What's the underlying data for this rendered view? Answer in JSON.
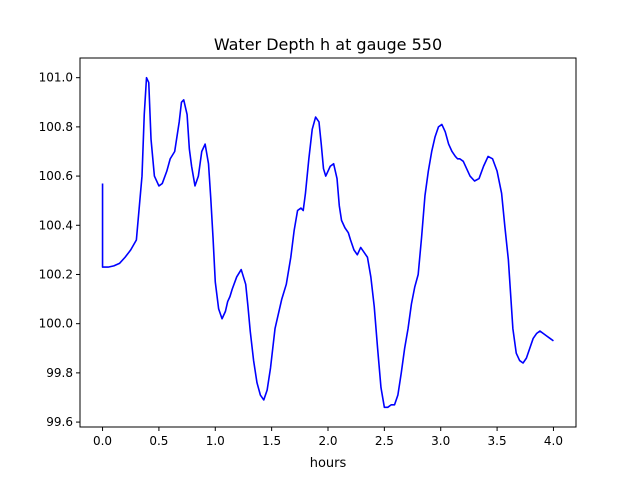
{
  "chart_data": {
    "type": "line",
    "title": "Water Depth h at gauge 550",
    "xlabel": "hours",
    "ylabel": "",
    "xlim": [
      -0.2,
      4.2
    ],
    "ylim": [
      99.58,
      101.08
    ],
    "xticks": [
      0.0,
      0.5,
      1.0,
      1.5,
      2.0,
      2.5,
      3.0,
      3.5,
      4.0
    ],
    "xtick_labels": [
      "0.0",
      "0.5",
      "1.0",
      "1.5",
      "2.0",
      "2.5",
      "3.0",
      "3.5",
      "4.0"
    ],
    "yticks": [
      99.6,
      99.8,
      100.0,
      100.2,
      100.4,
      100.6,
      100.8,
      101.0
    ],
    "ytick_labels": [
      "99.6",
      "99.8",
      "100.0",
      "100.2",
      "100.4",
      "100.6",
      "100.8",
      "101.0"
    ],
    "grid": false,
    "series": [
      {
        "color": "#0000ff",
        "x": [
          0.0,
          0.0,
          0.01,
          0.05,
          0.1,
          0.15,
          0.2,
          0.25,
          0.3,
          0.35,
          0.37,
          0.39,
          0.41,
          0.43,
          0.46,
          0.5,
          0.53,
          0.57,
          0.6,
          0.64,
          0.68,
          0.7,
          0.72,
          0.75,
          0.77,
          0.79,
          0.82,
          0.85,
          0.88,
          0.91,
          0.94,
          0.96,
          0.98,
          1.0,
          1.03,
          1.06,
          1.09,
          1.11,
          1.13,
          1.15,
          1.19,
          1.23,
          1.27,
          1.29,
          1.31,
          1.34,
          1.37,
          1.4,
          1.43,
          1.46,
          1.49,
          1.51,
          1.53,
          1.56,
          1.59,
          1.63,
          1.67,
          1.7,
          1.73,
          1.76,
          1.78,
          1.8,
          1.83,
          1.86,
          1.89,
          1.92,
          1.94,
          1.96,
          1.98,
          2.0,
          2.02,
          2.05,
          2.08,
          2.1,
          2.12,
          2.15,
          2.18,
          2.2,
          2.23,
          2.26,
          2.29,
          2.32,
          2.35,
          2.38,
          2.41,
          2.44,
          2.47,
          2.5,
          2.53,
          2.56,
          2.59,
          2.62,
          2.65,
          2.68,
          2.71,
          2.74,
          2.77,
          2.8,
          2.83,
          2.86,
          2.89,
          2.92,
          2.95,
          2.98,
          3.01,
          3.04,
          3.07,
          3.1,
          3.13,
          3.15,
          3.17,
          3.2,
          3.23,
          3.26,
          3.3,
          3.34,
          3.38,
          3.42,
          3.46,
          3.5,
          3.54,
          3.57,
          3.6,
          3.62,
          3.64,
          3.67,
          3.7,
          3.73,
          3.76,
          3.79,
          3.82,
          3.85,
          3.88,
          3.91,
          3.94,
          3.97,
          4.0
        ],
        "y": [
          100.57,
          100.23,
          100.23,
          100.23,
          100.235,
          100.245,
          100.27,
          100.3,
          100.34,
          100.6,
          100.85,
          101.0,
          100.98,
          100.75,
          100.6,
          100.56,
          100.57,
          100.62,
          100.67,
          100.7,
          100.82,
          100.9,
          100.91,
          100.85,
          100.71,
          100.64,
          100.56,
          100.6,
          100.7,
          100.73,
          100.65,
          100.51,
          100.35,
          100.17,
          100.06,
          100.02,
          100.05,
          100.09,
          100.11,
          100.14,
          100.19,
          100.22,
          100.16,
          100.07,
          99.97,
          99.85,
          99.76,
          99.71,
          99.69,
          99.73,
          99.82,
          99.9,
          99.98,
          100.04,
          100.1,
          100.16,
          100.27,
          100.38,
          100.46,
          100.47,
          100.46,
          100.53,
          100.67,
          100.79,
          100.84,
          100.82,
          100.73,
          100.63,
          100.6,
          100.62,
          100.64,
          100.65,
          100.59,
          100.48,
          100.42,
          100.39,
          100.37,
          100.34,
          100.3,
          100.28,
          100.31,
          100.29,
          100.27,
          100.19,
          100.07,
          99.9,
          99.74,
          99.66,
          99.66,
          99.67,
          99.67,
          99.71,
          99.8,
          99.9,
          99.98,
          100.08,
          100.15,
          100.2,
          100.35,
          100.52,
          100.62,
          100.7,
          100.76,
          100.8,
          100.81,
          100.78,
          100.73,
          100.7,
          100.68,
          100.67,
          100.67,
          100.66,
          100.63,
          100.6,
          100.58,
          100.59,
          100.64,
          100.68,
          100.67,
          100.62,
          100.53,
          100.39,
          100.26,
          100.12,
          99.98,
          99.88,
          99.85,
          99.84,
          99.86,
          99.9,
          99.94,
          99.96,
          99.97,
          99.96,
          99.95,
          99.94,
          99.93
        ]
      }
    ]
  }
}
